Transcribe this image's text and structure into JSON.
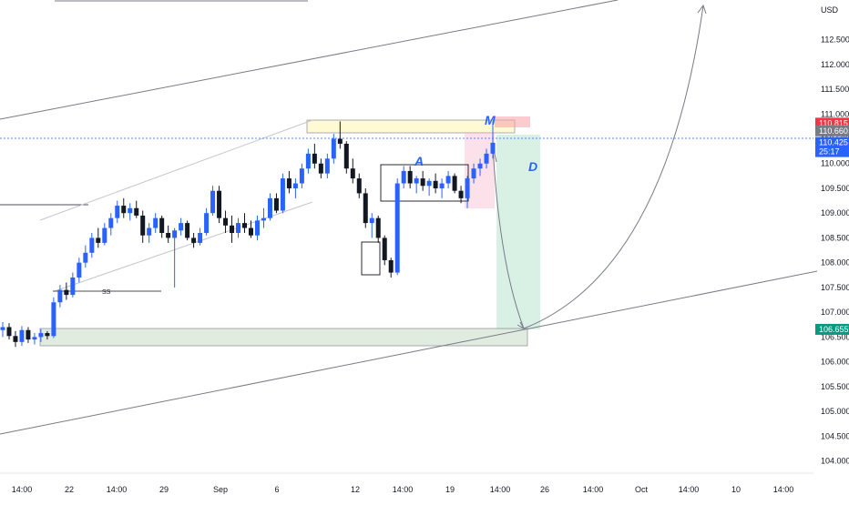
{
  "chart_data": {
    "type": "candlestick",
    "currency": "USD",
    "ylim": [
      103.9,
      113.3
    ],
    "y_ticks": [
      "112.500",
      "112.000",
      "111.500",
      "111.000",
      "110.500",
      "110.000",
      "109.500",
      "109.000",
      "108.500",
      "108.000",
      "107.500",
      "107.000",
      "106.500",
      "106.000",
      "105.500",
      "105.000",
      "104.500",
      "104.000"
    ],
    "x_ticks": [
      "14:00",
      "22",
      "14:00",
      "29",
      "Sep",
      "6",
      "12",
      "14:00",
      "19",
      "14:00",
      "26",
      "14:00",
      "Oct",
      "14:00",
      "10",
      "14:00"
    ],
    "price_tags": [
      {
        "label": "110.815",
        "value": 110.815,
        "color": "#f23645"
      },
      {
        "label": "110.660",
        "value": 110.66,
        "color": "#787b86"
      },
      {
        "label": "110.425",
        "value": 110.425,
        "color": "#2962ff",
        "sub": "25:17"
      },
      {
        "label": "106.655",
        "value": 106.655,
        "color": "#089981"
      }
    ],
    "annotations": {
      "m": "M",
      "a": "A",
      "d": "D",
      "ss": "SS"
    },
    "colors": {
      "up": "#2962ff",
      "down": "#131722",
      "current_line": "#2962ff"
    },
    "candles": [
      [
        106.64,
        106.8,
        106.5,
        106.7
      ],
      [
        106.7,
        106.78,
        106.45,
        106.52
      ],
      [
        106.52,
        106.62,
        106.3,
        106.4
      ],
      [
        106.4,
        106.72,
        106.32,
        106.64
      ],
      [
        106.64,
        106.7,
        106.38,
        106.45
      ],
      [
        106.45,
        106.58,
        106.35,
        106.5
      ],
      [
        106.5,
        106.66,
        106.4,
        106.58
      ],
      [
        106.58,
        106.62,
        106.45,
        106.52
      ],
      [
        106.52,
        107.3,
        106.48,
        107.2
      ],
      [
        107.2,
        107.55,
        107.1,
        107.45
      ],
      [
        107.45,
        107.6,
        107.25,
        107.35
      ],
      [
        107.35,
        107.8,
        107.3,
        107.7
      ],
      [
        107.7,
        108.1,
        107.6,
        108.0
      ],
      [
        108.0,
        108.35,
        107.9,
        108.2
      ],
      [
        108.2,
        108.6,
        108.1,
        108.5
      ],
      [
        108.5,
        108.7,
        108.3,
        108.4
      ],
      [
        108.4,
        108.8,
        108.35,
        108.7
      ],
      [
        108.7,
        109.0,
        108.55,
        108.9
      ],
      [
        108.9,
        109.25,
        108.8,
        109.15
      ],
      [
        109.15,
        109.3,
        108.9,
        109.0
      ],
      [
        109.0,
        109.2,
        108.85,
        109.1
      ],
      [
        109.1,
        109.25,
        108.9,
        108.95
      ],
      [
        108.95,
        109.05,
        108.4,
        108.55
      ],
      [
        108.55,
        108.8,
        108.4,
        108.7
      ],
      [
        108.7,
        109.0,
        108.6,
        108.9
      ],
      [
        108.9,
        108.95,
        108.5,
        108.6
      ],
      [
        108.6,
        108.75,
        108.4,
        108.5
      ],
      [
        108.5,
        108.7,
        107.5,
        108.65
      ],
      [
        108.65,
        108.9,
        108.55,
        108.8
      ],
      [
        108.8,
        108.85,
        108.45,
        108.5
      ],
      [
        108.5,
        108.6,
        108.3,
        108.4
      ],
      [
        108.4,
        108.7,
        108.35,
        108.6
      ],
      [
        108.6,
        109.1,
        108.55,
        109.0
      ],
      [
        109.0,
        109.55,
        108.95,
        109.45
      ],
      [
        109.45,
        109.55,
        108.8,
        108.9
      ],
      [
        108.9,
        109.05,
        108.6,
        108.75
      ],
      [
        108.75,
        108.95,
        108.4,
        108.6
      ],
      [
        108.6,
        108.9,
        108.5,
        108.8
      ],
      [
        108.8,
        109.0,
        108.6,
        108.7
      ],
      [
        108.7,
        108.85,
        108.5,
        108.55
      ],
      [
        108.55,
        108.95,
        108.45,
        108.85
      ],
      [
        108.85,
        109.1,
        108.7,
        108.9
      ],
      [
        108.9,
        109.4,
        108.85,
        109.3
      ],
      [
        109.3,
        109.4,
        109.0,
        109.05
      ],
      [
        109.05,
        109.8,
        109.0,
        109.7
      ],
      [
        109.7,
        109.85,
        109.4,
        109.5
      ],
      [
        109.5,
        109.7,
        109.3,
        109.6
      ],
      [
        109.6,
        110.0,
        109.5,
        109.9
      ],
      [
        109.9,
        110.3,
        109.8,
        110.2
      ],
      [
        110.2,
        110.4,
        109.9,
        110.0
      ],
      [
        110.0,
        110.1,
        109.7,
        109.8
      ],
      [
        109.8,
        110.2,
        109.7,
        110.1
      ],
      [
        110.1,
        110.6,
        110.0,
        110.5
      ],
      [
        110.5,
        110.85,
        110.3,
        110.4
      ],
      [
        110.4,
        110.45,
        109.8,
        109.9
      ],
      [
        109.9,
        110.1,
        109.6,
        109.7
      ],
      [
        109.7,
        109.8,
        109.3,
        109.4
      ],
      [
        109.4,
        109.5,
        108.7,
        108.8
      ],
      [
        108.8,
        109.0,
        108.5,
        108.9
      ],
      [
        108.9,
        108.95,
        108.4,
        108.5
      ],
      [
        108.5,
        108.55,
        107.95,
        108.05
      ],
      [
        108.05,
        108.1,
        107.7,
        107.8
      ],
      [
        107.8,
        109.7,
        107.75,
        109.6
      ],
      [
        109.6,
        109.95,
        109.5,
        109.85
      ],
      [
        109.85,
        109.95,
        109.5,
        109.6
      ],
      [
        109.6,
        109.75,
        109.4,
        109.7
      ],
      [
        109.7,
        109.85,
        109.45,
        109.55
      ],
      [
        109.55,
        109.7,
        109.35,
        109.65
      ],
      [
        109.65,
        109.8,
        109.4,
        109.5
      ],
      [
        109.5,
        109.7,
        109.3,
        109.6
      ],
      [
        109.6,
        109.85,
        109.5,
        109.75
      ],
      [
        109.75,
        109.8,
        109.4,
        109.45
      ],
      [
        109.45,
        109.55,
        109.2,
        109.3
      ],
      [
        109.3,
        109.75,
        109.1,
        109.7
      ],
      [
        109.7,
        110.0,
        109.6,
        109.9
      ],
      [
        109.9,
        110.1,
        109.75,
        110.0
      ],
      [
        110.0,
        110.3,
        109.9,
        110.2
      ],
      [
        110.2,
        110.85,
        110.1,
        110.42
      ]
    ]
  }
}
